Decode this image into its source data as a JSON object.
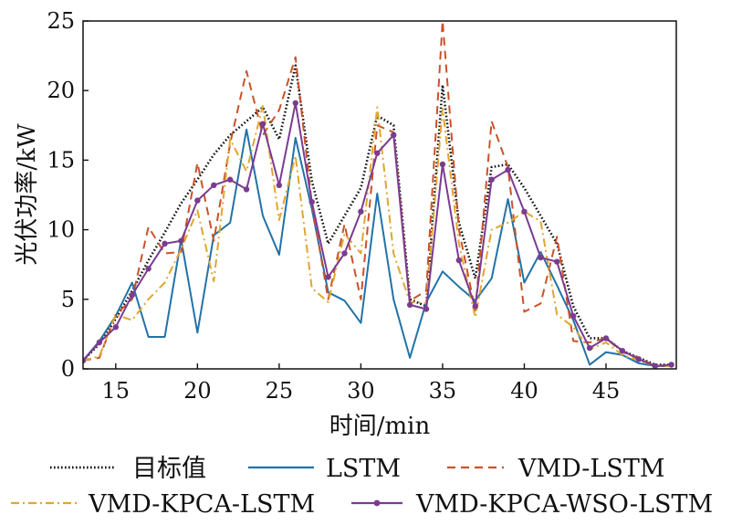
{
  "chart_data": {
    "type": "line",
    "xlabel": "时间/min",
    "ylabel": "光伏功率/kW",
    "xlim": [
      13,
      49.3
    ],
    "ylim": [
      0,
      25
    ],
    "xticks": [
      15,
      20,
      25,
      30,
      35,
      40,
      45
    ],
    "yticks": [
      0,
      5,
      10,
      15,
      20,
      25
    ],
    "grid": false,
    "legend_position": "bottom",
    "x": [
      13,
      14,
      15,
      16,
      17,
      18,
      19,
      20,
      21,
      22,
      23,
      24,
      25,
      26,
      27,
      28,
      29,
      30,
      31,
      32,
      33,
      34,
      35,
      36,
      37,
      38,
      39,
      40,
      41,
      42,
      43,
      44,
      45,
      46,
      47,
      48,
      49
    ],
    "series": [
      {
        "name": "目标值",
        "color": "#111111",
        "dash": "dotted",
        "marker": false,
        "values": [
          0.6,
          1.8,
          3.6,
          5.6,
          7.8,
          9.8,
          11.9,
          13.6,
          15.4,
          16.8,
          17.8,
          18.8,
          16.5,
          21.8,
          13.5,
          9.0,
          11.0,
          13.0,
          18.2,
          17.5,
          5.0,
          4.5,
          20.4,
          10.5,
          6.5,
          14.5,
          14.7,
          13.0,
          11.0,
          9.0,
          4.5,
          2.2,
          2.2,
          1.3,
          0.8,
          0.3,
          0.3
        ]
      },
      {
        "name": "LSTM",
        "color": "#2272a8",
        "dash": "solid",
        "marker": false,
        "values": [
          0.6,
          2.0,
          3.8,
          6.2,
          2.3,
          2.3,
          9.3,
          2.6,
          9.6,
          10.5,
          17.2,
          11.0,
          8.2,
          16.6,
          11.5,
          5.5,
          4.9,
          3.3,
          12.6,
          5.0,
          0.8,
          4.8,
          7.0,
          5.9,
          4.9,
          6.5,
          12.2,
          6.2,
          8.4,
          6.0,
          3.5,
          0.3,
          1.2,
          1.0,
          0.4,
          0.2,
          0.2
        ]
      },
      {
        "name": "VMD-LSTM",
        "color": "#c9522a",
        "dash": "dashed",
        "marker": false,
        "values": [
          0.6,
          0.8,
          3.9,
          5.0,
          10.2,
          8.3,
          8.4,
          14.8,
          9.2,
          16.2,
          21.4,
          16.8,
          18.6,
          22.4,
          11.9,
          5.0,
          10.4,
          5.0,
          17.5,
          17.0,
          4.9,
          5.6,
          25.0,
          10.0,
          4.2,
          17.8,
          14.5,
          4.1,
          4.7,
          9.5,
          2.0,
          1.9,
          2.2,
          1.2,
          0.8,
          0.2,
          0.3
        ]
      },
      {
        "name": "VMD-KPCA-LSTM",
        "color": "#e0a630",
        "dash": "dashdot",
        "marker": false,
        "values": [
          0.6,
          0.9,
          3.9,
          3.5,
          5.0,
          6.2,
          8.6,
          11.4,
          6.3,
          16.5,
          14.2,
          18.9,
          10.7,
          15.3,
          5.8,
          4.8,
          9.7,
          8.3,
          18.8,
          8.3,
          4.8,
          4.7,
          18.7,
          9.0,
          3.7,
          10.0,
          10.5,
          11.3,
          10.6,
          3.9,
          3.0,
          1.4,
          1.9,
          1.0,
          0.6,
          0.2,
          0.2
        ]
      },
      {
        "name": "VMD-KPCA-WSO-LSTM",
        "color": "#7b3b90",
        "dash": "solid",
        "marker": true,
        "values": [
          0.6,
          1.9,
          3.0,
          5.3,
          7.2,
          9.0,
          9.2,
          12.1,
          13.2,
          13.6,
          12.9,
          17.6,
          13.2,
          19.1,
          12.0,
          6.6,
          8.3,
          11.3,
          15.5,
          16.8,
          4.6,
          4.3,
          14.7,
          7.8,
          4.5,
          13.6,
          14.3,
          11.3,
          8.0,
          7.7,
          3.8,
          1.5,
          2.2,
          1.3,
          0.7,
          0.2,
          0.3
        ]
      }
    ]
  }
}
